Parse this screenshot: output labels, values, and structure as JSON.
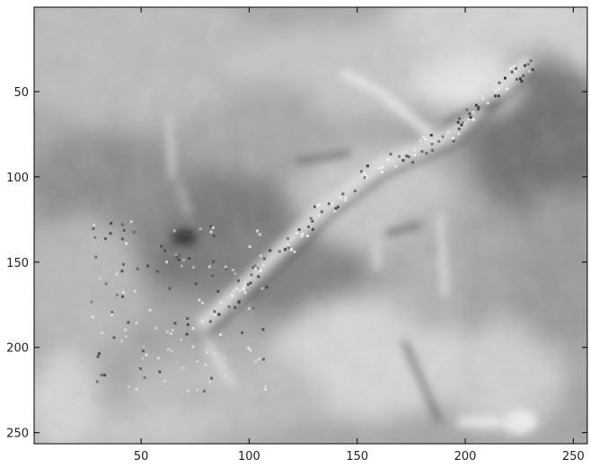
{
  "chart_data": {
    "type": "heatmap",
    "colormap": "gray",
    "title": "",
    "xlabel": "",
    "ylabel": "",
    "xlim": [
      0.5,
      256.5
    ],
    "ylim": [
      256.5,
      0.5
    ],
    "y_axis_direction": "top-to-bottom",
    "grid": false,
    "colorbar": false,
    "xticks": [
      50,
      100,
      150,
      200,
      250
    ],
    "yticks": [
      50,
      100,
      150,
      200,
      250
    ],
    "xtick_labels": [
      "50",
      "100",
      "150",
      "200",
      "250"
    ],
    "ytick_labels": [
      "50",
      "100",
      "150",
      "200",
      "250"
    ],
    "image_description": "grayscale intensity map with a bright diagonal streak of speckled noise from about (60,190) to (220,60)"
  }
}
